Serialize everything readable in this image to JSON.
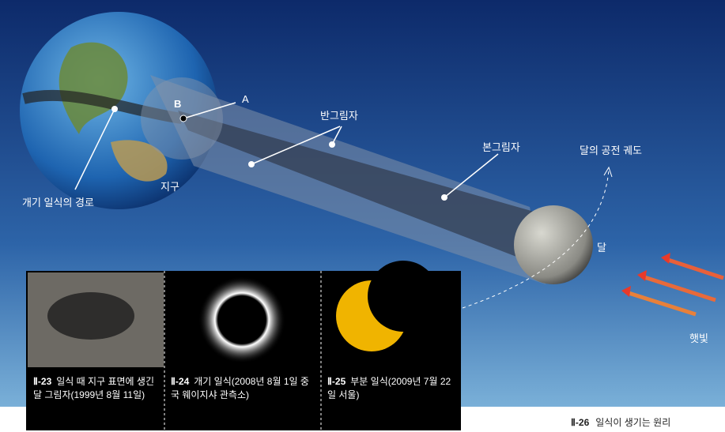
{
  "diagram": {
    "labels": {
      "a": "A",
      "b": "B",
      "penumbra": "반그림자",
      "umbra": "본그림자",
      "orbit": "달의 공전 궤도",
      "earth": "지구",
      "path": "개기 일식의 경로",
      "moon": "달",
      "sunlight": "햇빛"
    },
    "photos": [
      {
        "number": "Ⅱ-23",
        "caption": "일식 때 지구 표면에 생긴 달 그림자(1999년 8월 11일)"
      },
      {
        "number": "Ⅱ-24",
        "caption": "개기 일식(2008년 8월 1일 중국 웨이지샤 관측소)"
      },
      {
        "number": "Ⅱ-25",
        "caption": "부분 일식(2009년 7월 22일 서울)"
      }
    ],
    "figure": {
      "number": "Ⅱ-26",
      "caption": "일식이 생기는 원리"
    }
  }
}
